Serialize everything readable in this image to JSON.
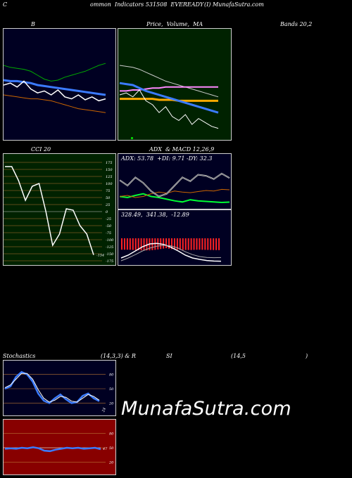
{
  "header": {
    "left_c": "C",
    "text": "ommon  Indicators 531508  EVEREADY",
    "right": "(I) MunafaSutra.com"
  },
  "row1": {
    "label_b": "B",
    "label_price": "Price,  Volume,  MA",
    "label_bands": "Bands 20,2"
  },
  "row2": {
    "label_cci": "CCI 20",
    "label_adx": "ADX  & MACD 12,26,9",
    "adx_text": "ADX: 53.78  +DI: 9.71 -DY: 32.3",
    "macd_text": "328.49,  341.38,  -12.89"
  },
  "row3": {
    "label_stoch": "Stochastics",
    "label_mid": "(14,3,3) & R",
    "label_si": "SI",
    "label_params": "(14,5",
    "label_close": ")"
  },
  "watermark": "MunafaSutra.com",
  "colors": {
    "navy": "#000022",
    "green_bg": "#002200",
    "red_bg": "#880000",
    "blue_line": "#3b7bff",
    "orange_line": "#cc6600",
    "green_line": "#00ff33",
    "grid_orange": "#b87333"
  },
  "chart_data": [
    {
      "name": "bollinger",
      "type": "line",
      "series": [
        {
          "values": [
            70,
            68,
            67,
            66,
            64,
            60,
            56,
            54,
            55,
            58,
            60,
            62,
            64,
            67,
            70,
            72
          ]
        },
        {
          "values": [
            50,
            52,
            48,
            54,
            46,
            42,
            44,
            40,
            45,
            38,
            36,
            40,
            35,
            38,
            34,
            36
          ]
        },
        {
          "values": [
            55,
            54,
            54,
            53,
            52,
            50,
            49,
            48,
            47,
            46,
            45,
            44,
            43,
            42,
            41,
            40
          ]
        },
        {
          "values": [
            40,
            39,
            38,
            37,
            36,
            36,
            35,
            34,
            32,
            30,
            28,
            26,
            25,
            24,
            23,
            22
          ]
        }
      ]
    },
    {
      "name": "price_ma",
      "type": "line",
      "series": [
        {
          "values": [
            52,
            51,
            50,
            47,
            44,
            42,
            40,
            38,
            36,
            34,
            32,
            30,
            28,
            26,
            24,
            22
          ]
        },
        {
          "values": [
            70,
            69,
            68,
            66,
            63,
            60,
            57,
            54,
            52,
            50,
            48,
            46,
            44,
            42,
            40,
            38
          ]
        },
        {
          "values": [
            44,
            44,
            45,
            45,
            46,
            47,
            47,
            48,
            48,
            48,
            48,
            48,
            48,
            48,
            48,
            48
          ]
        },
        {
          "values": [
            36,
            36,
            36,
            36,
            36,
            36,
            35,
            35,
            35,
            34,
            34,
            34,
            34,
            34,
            34,
            34
          ]
        },
        {
          "values": [
            40,
            42,
            38,
            45,
            34,
            30,
            22,
            28,
            18,
            14,
            20,
            10,
            16,
            12,
            8,
            6
          ]
        }
      ]
    },
    {
      "name": "cci",
      "type": "line",
      "ticks": [
        "175",
        "150",
        "125",
        "100",
        "75",
        "50",
        "25",
        "0",
        "-25",
        "-50",
        "-75",
        "-100",
        "-125",
        "-150",
        "-175"
      ],
      "last_value": "-154",
      "values": [
        160,
        160,
        110,
        40,
        90,
        100,
        0,
        -120,
        -80,
        10,
        5,
        -50,
        -80,
        -154
      ]
    },
    {
      "name": "adx",
      "type": "line",
      "series": [
        {
          "name": "ADX",
          "values": [
            50,
            40,
            55,
            45,
            30,
            20,
            25,
            40,
            55,
            48,
            60,
            58,
            52,
            62,
            53.78
          ]
        },
        {
          "name": "+DI",
          "values": [
            20,
            18,
            22,
            25,
            20,
            18,
            15,
            12,
            10,
            14,
            12,
            11,
            10,
            9,
            9.71
          ]
        },
        {
          "name": "-DY",
          "values": [
            20,
            22,
            18,
            20,
            25,
            28,
            26,
            30,
            28,
            27,
            29,
            31,
            30,
            33,
            32.3
          ]
        }
      ]
    },
    {
      "name": "macd",
      "type": "line",
      "series": [
        {
          "values": [
            340,
            350,
            365,
            380,
            390,
            392,
            388,
            378,
            365,
            350,
            340,
            335,
            331,
            329,
            328.49
          ]
        },
        {
          "values": [
            330,
            340,
            352,
            365,
            375,
            382,
            385,
            383,
            375,
            362,
            352,
            345,
            342,
            341,
            341.38
          ]
        },
        {
          "values": [
            10,
            10,
            13,
            15,
            15,
            10,
            3,
            -5,
            -10,
            -12,
            -12,
            -10,
            -11,
            -12,
            -12.89
          ]
        }
      ]
    },
    {
      "name": "stochastics",
      "type": "line",
      "ticks": [
        "80",
        "50",
        "20"
      ],
      "last_value": "24",
      "series": [
        {
          "values": [
            50,
            55,
            75,
            85,
            80,
            65,
            40,
            25,
            20,
            30,
            38,
            28,
            20,
            22,
            35,
            40,
            30,
            24
          ]
        },
        {
          "values": [
            52,
            58,
            70,
            82,
            82,
            70,
            48,
            30,
            22,
            26,
            34,
            32,
            24,
            22,
            30,
            38,
            34,
            26
          ]
        }
      ]
    },
    {
      "name": "rsi",
      "type": "line",
      "ticks": [
        "80",
        "50",
        "20"
      ],
      "last_value": "47",
      "values": [
        48,
        49,
        48,
        50,
        49,
        51,
        49,
        44,
        43,
        46,
        48,
        50,
        49,
        50,
        48,
        49,
        50,
        47
      ]
    }
  ]
}
